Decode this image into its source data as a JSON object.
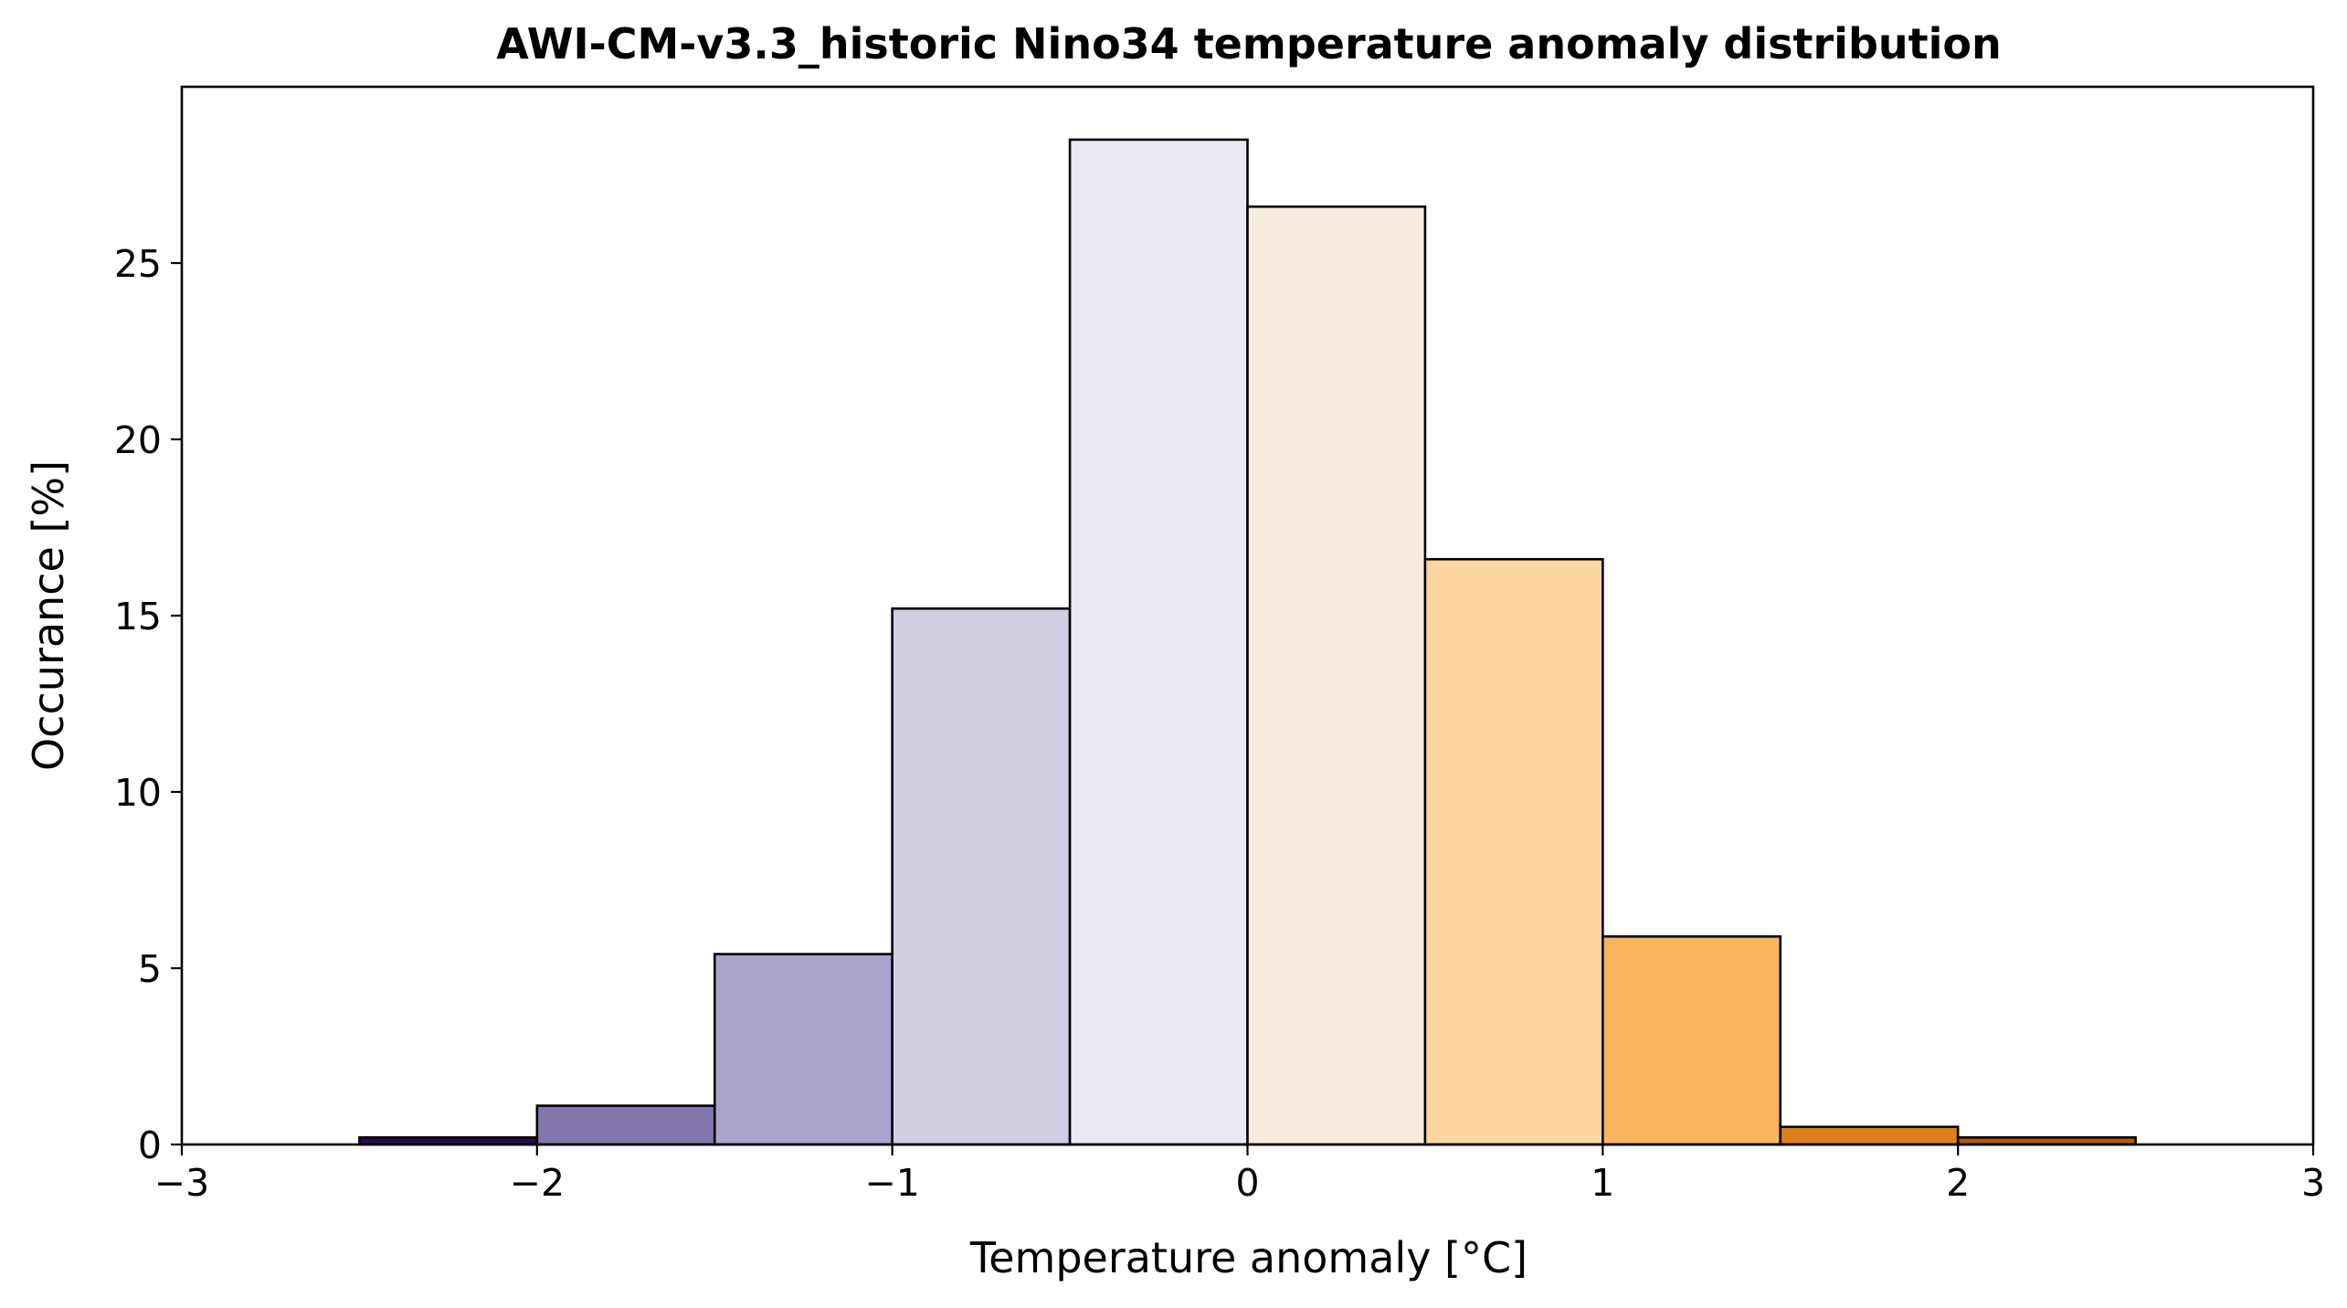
{
  "chart_data": {
    "type": "bar",
    "title": "AWI-CM-v3.3_historic Nino34 temperature anomaly distribution",
    "xlabel": "Temperature anomaly [°C]",
    "ylabel": "Occurance [%]",
    "xlim": [
      -3,
      3
    ],
    "ylim": [
      0,
      30
    ],
    "xticks": [
      -3,
      -2,
      -1,
      0,
      1,
      2,
      3
    ],
    "xtick_labels": [
      "−3",
      "−2",
      "−1",
      "0",
      "1",
      "2",
      "3"
    ],
    "yticks": [
      0,
      5,
      10,
      15,
      20,
      25
    ],
    "ytick_labels": [
      "0",
      "5",
      "10",
      "15",
      "20",
      "25"
    ],
    "grid": false,
    "legend": "none",
    "bins": [
      {
        "x0": -2.5,
        "x1": -2.0,
        "value": 0.2,
        "color": "#2d0b52"
      },
      {
        "x0": -2.0,
        "x1": -1.5,
        "value": 1.1,
        "color": "#8376ad"
      },
      {
        "x0": -1.5,
        "x1": -1.0,
        "value": 5.4,
        "color": "#aba3cc"
      },
      {
        "x0": -1.0,
        "x1": -0.5,
        "value": 15.2,
        "color": "#cfcee3"
      },
      {
        "x0": -0.5,
        "x1": 0.0,
        "value": 28.5,
        "color": "#e9e9f3"
      },
      {
        "x0": 0.0,
        "x1": 0.5,
        "value": 26.6,
        "color": "#f9ebdb"
      },
      {
        "x0": 0.5,
        "x1": 1.0,
        "value": 16.6,
        "color": "#fed6a1"
      },
      {
        "x0": 1.0,
        "x1": 1.5,
        "value": 5.9,
        "color": "#f9b45f"
      },
      {
        "x0": 1.5,
        "x1": 2.0,
        "value": 0.5,
        "color": "#df7f1a"
      },
      {
        "x0": 2.0,
        "x1": 2.5,
        "value": 0.2,
        "color": "#b25b06"
      }
    ]
  }
}
